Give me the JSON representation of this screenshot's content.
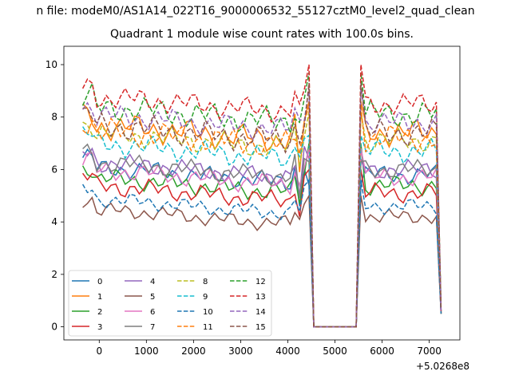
{
  "suptitle": "n file: modeM0/AS1A14_022T16_9000006532_55127cztM0_level2_quad_clean",
  "chart_data": {
    "type": "line",
    "title": "Quadrant 1 module wise count rates with 100.0s bins.",
    "xlabel": "",
    "ylabel": "",
    "x_offset_label": "+5.0268e8",
    "xlim": [
      -750,
      7650
    ],
    "ylim": [
      -0.5,
      10.7
    ],
    "xticks": [
      0,
      1000,
      2000,
      3000,
      4000,
      5000,
      6000,
      7000
    ],
    "yticks": [
      0,
      2,
      4,
      6,
      8,
      10
    ],
    "legend": {
      "placement": "lower-left",
      "columns": 4
    },
    "grid": false,
    "x": {
      "start": -350,
      "step": 100,
      "count": 77
    },
    "gap": {
      "start_index": 49,
      "end_index": 58,
      "value": 0
    },
    "series": [
      {
        "name": "0",
        "color": "#1f77b4",
        "dash": "solid",
        "base": 5.8,
        "amp": 0.25,
        "edge": [
          5.4,
          4.6,
          0.6
        ]
      },
      {
        "name": "1",
        "color": "#ff7f0e",
        "dash": "solid",
        "base": 7.4,
        "amp": 0.35,
        "edge": [
          8.6,
          5.9,
          0.5
        ]
      },
      {
        "name": "2",
        "color": "#2ca02c",
        "dash": "solid",
        "base": 5.4,
        "amp": 0.25,
        "edge": [
          7.0,
          4.7,
          0.5
        ]
      },
      {
        "name": "3",
        "color": "#d62728",
        "dash": "solid",
        "base": 5.1,
        "amp": 0.25,
        "edge": [
          6.0,
          4.2,
          0.5
        ]
      },
      {
        "name": "4",
        "color": "#9467bd",
        "dash": "solid",
        "base": 6.0,
        "amp": 0.25,
        "edge": [
          6.4,
          5.0,
          0.5
        ]
      },
      {
        "name": "5",
        "color": "#8c564b",
        "dash": "solid",
        "base": 4.2,
        "amp": 0.2,
        "edge": [
          5.0,
          4.1,
          0.5
        ]
      },
      {
        "name": "6",
        "color": "#e377c2",
        "dash": "solid",
        "base": 5.7,
        "amp": 0.25,
        "edge": [
          6.8,
          5.4,
          0.5
        ]
      },
      {
        "name": "7",
        "color": "#7f7f7f",
        "dash": "solid",
        "base": 6.0,
        "amp": 0.25,
        "edge": [
          6.3,
          4.9,
          0.5
        ]
      },
      {
        "name": "8",
        "color": "#bcbd22",
        "dash": "dashed",
        "base": 7.1,
        "amp": 0.3,
        "edge": [
          8.2,
          6.1,
          0.5
        ]
      },
      {
        "name": "9",
        "color": "#17becf",
        "dash": "dashed",
        "base": 6.7,
        "amp": 0.3,
        "edge": [
          7.3,
          6.5,
          0.5
        ]
      },
      {
        "name": "10",
        "color": "#1f77b4",
        "dash": "dashed",
        "base": 4.6,
        "amp": 0.2,
        "edge": [
          5.6,
          4.4,
          0.5
        ]
      },
      {
        "name": "11",
        "color": "#ff7f0e",
        "dash": "dashed",
        "base": 7.2,
        "amp": 0.35,
        "edge": [
          8.4,
          6.6,
          0.6
        ]
      },
      {
        "name": "12",
        "color": "#2ca02c",
        "dash": "dashed",
        "base": 8.1,
        "amp": 0.35,
        "edge": [
          9.7,
          7.8,
          0.8
        ]
      },
      {
        "name": "13",
        "color": "#d62728",
        "dash": "dashed",
        "base": 8.5,
        "amp": 0.3,
        "edge": [
          10.0,
          8.5,
          0.6
        ]
      },
      {
        "name": "14",
        "color": "#9467bd",
        "dash": "dashed",
        "base": 7.8,
        "amp": 0.3,
        "edge": [
          9.1,
          7.9,
          0.6
        ]
      },
      {
        "name": "15",
        "color": "#8c564b",
        "dash": "dashed",
        "base": 7.4,
        "amp": 0.35,
        "edge": [
          9.3,
          7.0,
          0.7
        ]
      }
    ]
  }
}
